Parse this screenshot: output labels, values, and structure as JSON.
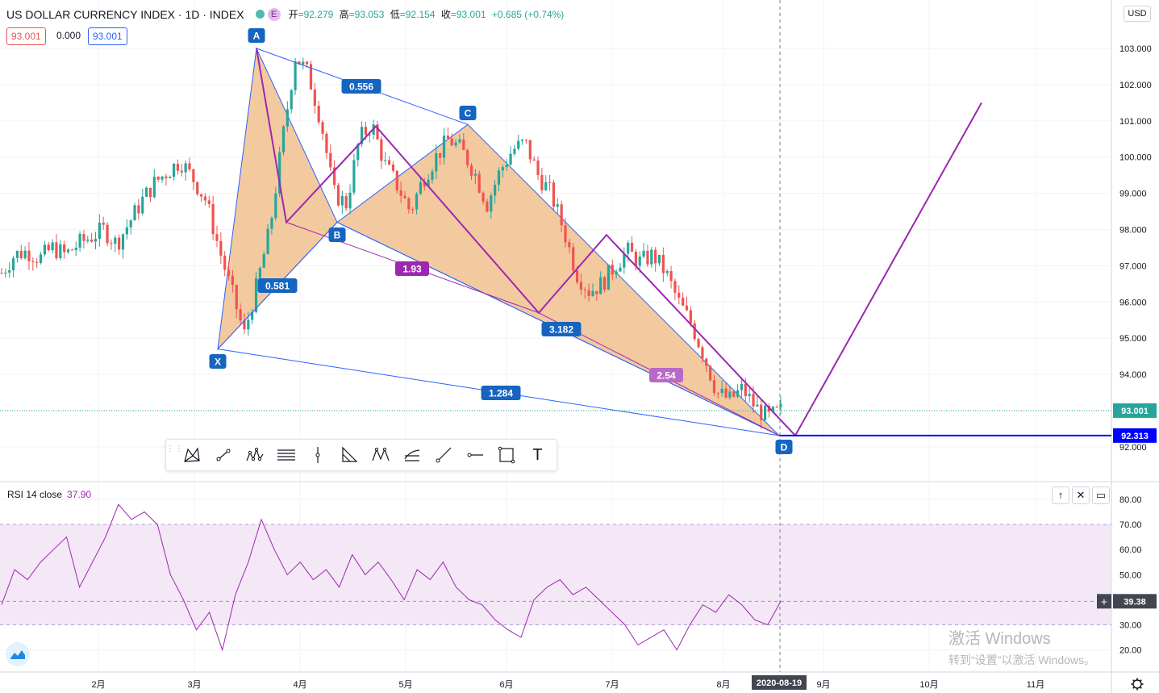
{
  "header": {
    "symbol": "US DOLLAR CURRENCY INDEX · 1D · INDEX",
    "badge": "E",
    "open_label": "开",
    "open": "=92.279",
    "high_label": "高",
    "high": "=93.053",
    "low_label": "低",
    "low": "=92.154",
    "close_label": "收",
    "close": "=93.001",
    "change": "+0.685 (+0.74%)",
    "bid": "93.001",
    "spread": "0.000",
    "ask": "93.001"
  },
  "currency": "USD",
  "colors": {
    "up": "#26a69a",
    "down": "#ef5350",
    "pattern_fill": "#f1c08e",
    "xabcd_line": "#2962ff",
    "purple": "#9c27b0",
    "label_blue": "#1565c0",
    "label_purple": "#9c27b0"
  },
  "rsi": {
    "title": "RSI 14 close",
    "value": "37.90",
    "current_tag": "39.38",
    "axis": [
      "80.00",
      "70.00",
      "60.00",
      "50.00",
      "40.00",
      "30.00",
      "20.00"
    ]
  },
  "toolbar": {
    "items": [
      "xabcd-pattern-icon",
      "trend-line-icon",
      "elliott-wave-icon",
      "parallel-channel-icon",
      "vertical-line-icon",
      "abcd-pattern-icon",
      "head-shoulders-icon",
      "fib-retracement-icon",
      "ray-icon",
      "horizontal-ray-icon",
      "rectangle-icon",
      "text-icon"
    ],
    "text_glyph": "T"
  },
  "pane_buttons": [
    "↑",
    "✕",
    "▭"
  ],
  "watermark": {
    "line1": "激活 Windows",
    "line2": "转到“设置”以激活 Windows。"
  },
  "chart_data": [
    {
      "type": "candlestick",
      "title": "US DOLLAR CURRENCY INDEX",
      "interval": "1D",
      "ylim": [
        91.5,
        103.2
      ],
      "y_ticks": [
        "103.000",
        "102.000",
        "101.000",
        "100.000",
        "99.000",
        "98.000",
        "97.000",
        "96.000",
        "95.000",
        "94.000",
        "93.000",
        "92.000"
      ],
      "x_ticks": [
        "2月",
        "3月",
        "4月",
        "5月",
        "6月",
        "7月",
        "8月",
        "9月",
        "10月",
        "11月"
      ],
      "crosshair_date": "2020-08-19",
      "last_price": "93.001",
      "horizontal_level": "92.313",
      "close_path": [
        96.8,
        97.3,
        97.4,
        97.2,
        97.5,
        97.3,
        97.6,
        97.8,
        98.0,
        97.6,
        98.2,
        98.8,
        99.3,
        99.6,
        99.9,
        99.4,
        98.8,
        97.5,
        96.3,
        95.1,
        96.5,
        98.0,
        100.5,
        102.8,
        102.3,
        101.0,
        99.0,
        98.7,
        100.5,
        100.9,
        99.8,
        99.2,
        98.5,
        99.4,
        100.0,
        100.5,
        100.2,
        99.6,
        98.7,
        99.6,
        100.2,
        100.4,
        99.5,
        99.0,
        98.0,
        96.8,
        96.3,
        96.5,
        97.0,
        97.4,
        97.1,
        97.3,
        96.8,
        96.0,
        95.4,
        94.5,
        93.5,
        93.3,
        93.6,
        93.1,
        92.8,
        93.0
      ],
      "rsi_values": [
        38,
        52,
        48,
        55,
        60,
        65,
        45,
        55,
        65,
        78,
        72,
        75,
        70,
        50,
        40,
        28,
        35,
        20,
        42,
        55,
        72,
        60,
        50,
        55,
        48,
        52,
        45,
        58,
        50,
        55,
        48,
        40,
        52,
        48,
        55,
        45,
        40,
        38,
        32,
        28,
        25,
        40,
        45,
        48,
        42,
        45,
        40,
        35,
        30,
        22,
        25,
        28,
        20,
        30,
        38,
        35,
        42,
        38,
        32,
        30,
        39.38
      ],
      "harmonic_pattern": {
        "points": {
          "X": 94.7,
          "A": 103.0,
          "B": 98.2,
          "C": 100.9,
          "D": 92.313
        },
        "labels": [
          "X",
          "A",
          "B",
          "C",
          "D"
        ],
        "ratios": [
          "0.581",
          "0.556",
          "1.284",
          "3.182",
          "1.93",
          "2.54"
        ]
      },
      "projection": {
        "end_value": 101.5
      }
    }
  ]
}
